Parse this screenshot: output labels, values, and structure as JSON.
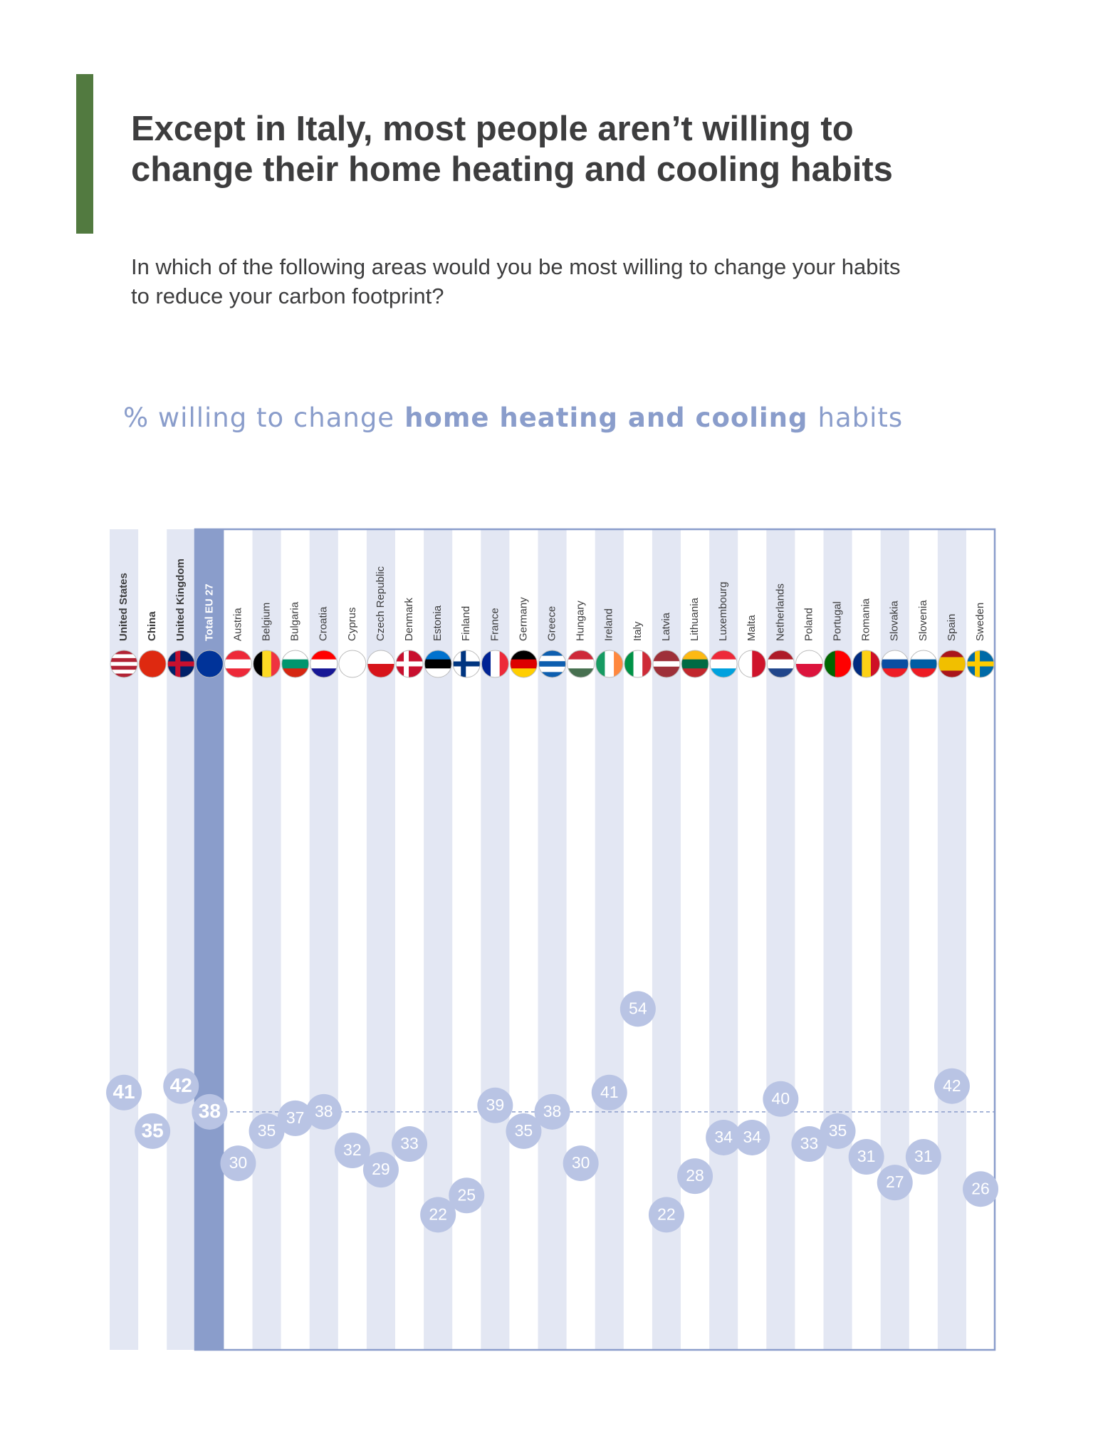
{
  "title": [
    "Except in Italy, most people aren’t willing to",
    "change their home heating and cooling habits"
  ],
  "subtitle": [
    "In which of the following areas would you be most willing to change your habits",
    "to reduce your carbon footprint?"
  ],
  "chart_data": {
    "type": "dot",
    "title": [
      "% willing to change",
      "home heating and cooling",
      "habits"
    ],
    "categories": [
      "United States",
      "China",
      "United Kingdom",
      "Total EU 27",
      "Austria",
      "Belgium",
      "Bulgaria",
      "Croatia",
      "Cyprus",
      "Czech Republic",
      "Denmark",
      "Estonia",
      "Finland",
      "France",
      "Germany",
      "Greece",
      "Hungary",
      "Ireland",
      "Italy",
      "Latvia",
      "Lithuania",
      "Luxembourg",
      "Malta",
      "Netherlands",
      "Poland",
      "Portugal",
      "Romania",
      "Slovakia",
      "Slovenia",
      "Spain",
      "Sweden"
    ],
    "values": [
      41,
      35,
      42,
      38,
      30,
      35,
      37,
      38,
      32,
      29,
      33,
      22,
      25,
      39,
      35,
      38,
      30,
      41,
      54,
      22,
      28,
      34,
      34,
      40,
      33,
      35,
      31,
      27,
      31,
      42,
      26
    ],
    "color": "#b9c4e4",
    "highlight_color": "#8a9dcb",
    "ylim": [
      0,
      130
    ]
  }
}
